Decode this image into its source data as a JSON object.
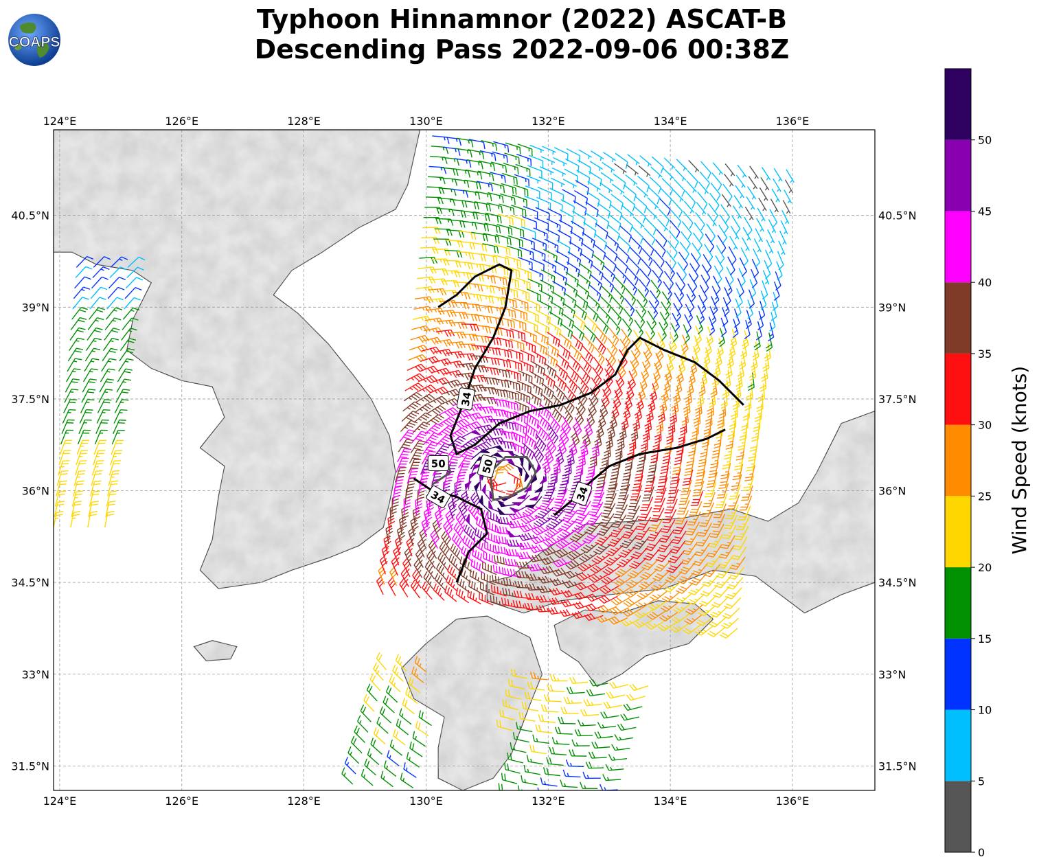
{
  "title": {
    "line1": "Typhoon Hinnamnor (2022) ASCAT-B",
    "line2": "Descending Pass 2022-09-06 00:38Z"
  },
  "logo": {
    "text": "COAPS",
    "icon": "globe-logo-icon"
  },
  "map": {
    "lon_ticks": [
      "124°E",
      "126°E",
      "128°E",
      "130°E",
      "132°E",
      "134°E",
      "136°E"
    ],
    "lat_ticks": [
      "40.5°N",
      "39°N",
      "37.5°N",
      "36°N",
      "34.5°N",
      "33°N",
      "31.5°N"
    ],
    "extent": {
      "lon": [
        123.9,
        137.35
      ],
      "lat": [
        31.1,
        41.9
      ]
    },
    "contour_labels": [
      "34",
      "34",
      "34",
      "50",
      "50"
    ],
    "land_color": "#e6e6e6",
    "ocean_color": "#ffffff"
  },
  "colorbar": {
    "title": "Wind Speed (knots)",
    "tick_labels": [
      "0",
      "5",
      "10",
      "15",
      "20",
      "25",
      "30",
      "35",
      "40",
      "45",
      "50"
    ],
    "colors": [
      "#555555",
      "#00bfff",
      "#0033ff",
      "#009000",
      "#ffd700",
      "#ff8c00",
      "#ff1010",
      "#803a28",
      "#ff00ff",
      "#8800b0",
      "#2e0060"
    ]
  }
}
